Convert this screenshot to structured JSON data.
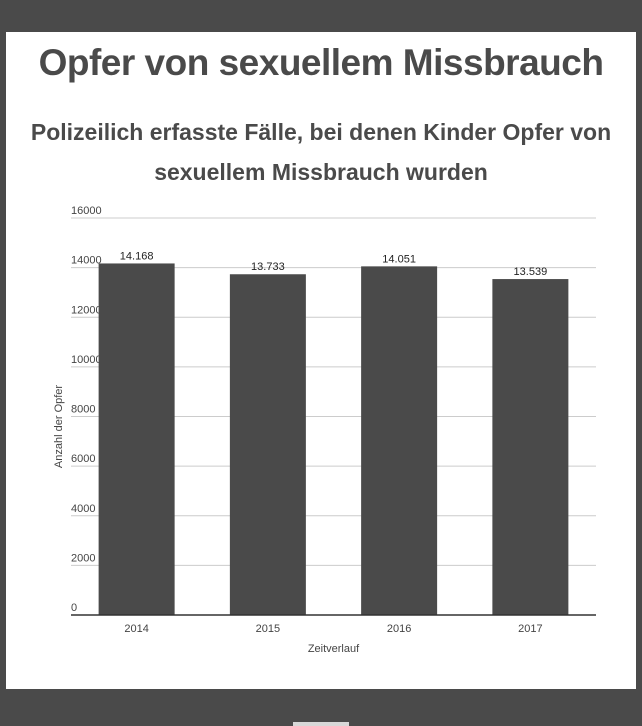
{
  "page": {
    "title": "Opfer von sexuellem Missbrauch"
  },
  "colors": {
    "frame": "#4a4a4a",
    "bar": "#4a4a4a",
    "grid": "#cccccc",
    "text": "#4a4a4a"
  },
  "chart_data": {
    "type": "bar",
    "title": "Polizeilich erfasste Fälle, bei denen Kinder Opfer von sexuellem Missbrauch wurden",
    "xlabel": "Zeitverlauf",
    "ylabel": "Anzahl der Opfer",
    "categories": [
      "2014",
      "2015",
      "2016",
      "2017"
    ],
    "values": [
      14168,
      13733,
      14051,
      13539
    ],
    "data_labels": [
      "14.168",
      "13.733",
      "14.051",
      "13.539"
    ],
    "ylim": [
      0,
      16000
    ],
    "yticks": [
      "0",
      "2000",
      "4000",
      "6000",
      "8000",
      "10000",
      "12000",
      "14000",
      "16000"
    ],
    "grid": true,
    "legend": "none"
  }
}
